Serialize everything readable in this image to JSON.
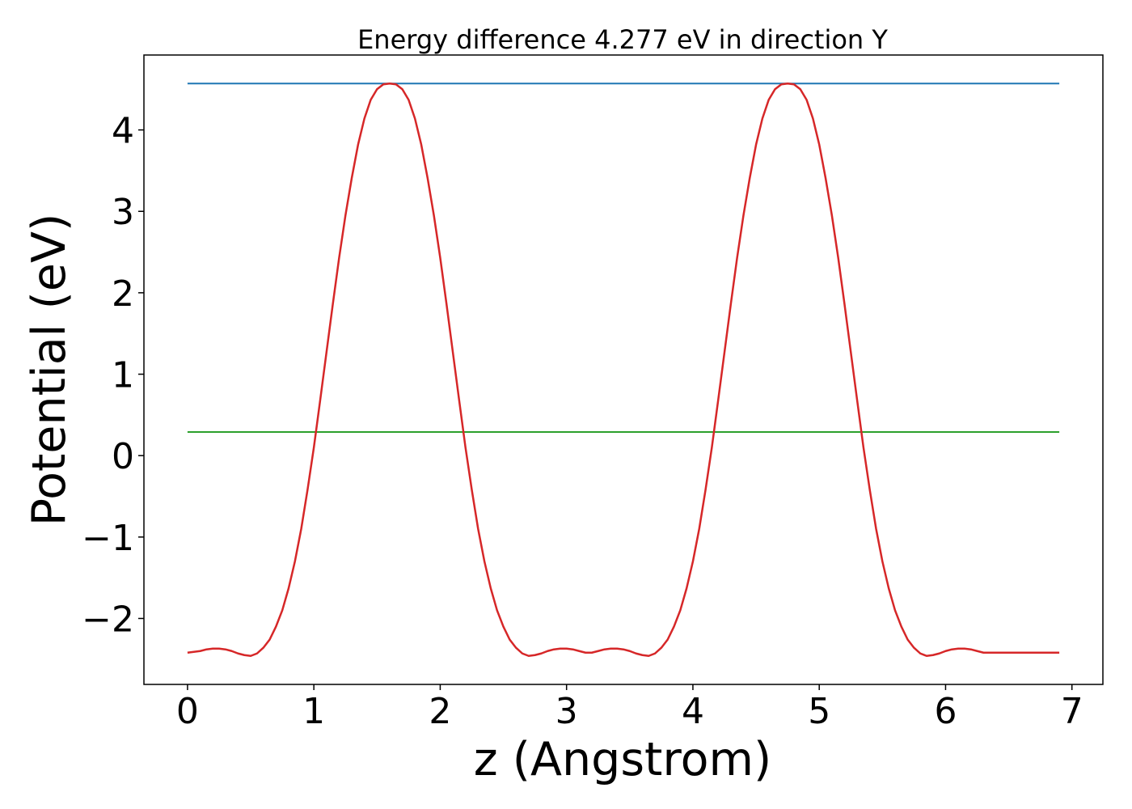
{
  "chart_data": {
    "type": "line",
    "title": "Energy difference 4.277 eV in direction Y",
    "xlabel": "z (Angstrom)",
    "ylabel": "Potential (eV)",
    "xlim": [
      -0.345,
      7.245
    ],
    "ylim": [
      -2.81,
      4.92
    ],
    "xticks": [
      0,
      1,
      2,
      3,
      4,
      5,
      6,
      7
    ],
    "xtick_labels": [
      "0",
      "1",
      "2",
      "3",
      "4",
      "5",
      "6",
      "7"
    ],
    "yticks": [
      -2,
      -1,
      0,
      1,
      2,
      3,
      4
    ],
    "ytick_labels": [
      "−2",
      "−1",
      "0",
      "1",
      "2",
      "3",
      "4"
    ],
    "grid": false,
    "legend": null,
    "series": [
      {
        "color": "#1f77b4",
        "x": [
          0,
          6.9
        ],
        "y": [
          4.57,
          4.57
        ]
      },
      {
        "color": "#2ca02c",
        "x": [
          0,
          6.9
        ],
        "y": [
          0.29,
          0.29
        ]
      },
      {
        "color": "#d62728",
        "x": [
          0.0,
          0.1,
          0.15,
          0.2,
          0.25,
          0.3,
          0.35,
          0.4,
          0.45,
          0.5,
          0.55,
          0.6,
          0.65,
          0.7,
          0.75,
          0.8,
          0.85,
          0.9,
          0.95,
          1.0,
          1.05,
          1.1,
          1.15,
          1.2,
          1.25,
          1.3,
          1.35,
          1.4,
          1.45,
          1.5,
          1.55,
          1.6,
          1.65,
          1.7,
          1.75,
          1.8,
          1.85,
          1.9,
          1.95,
          2.0,
          2.05,
          2.1,
          2.15,
          2.2,
          2.25,
          2.3,
          2.35,
          2.4,
          2.45,
          2.5,
          2.55,
          2.6,
          2.65,
          2.7,
          2.75,
          2.8,
          2.85,
          2.9,
          2.95,
          3.0,
          3.05,
          3.1,
          3.15,
          3.2,
          3.25,
          3.3,
          3.35,
          3.4,
          3.45,
          3.5,
          3.55,
          3.6,
          3.65,
          3.7,
          3.75,
          3.8,
          3.85,
          3.9,
          3.95,
          4.0,
          4.05,
          4.1,
          4.15,
          4.2,
          4.25,
          4.3,
          4.35,
          4.4,
          4.45,
          4.5,
          4.55,
          4.6,
          4.65,
          4.7,
          4.75,
          4.8,
          4.85,
          4.9,
          4.95,
          5.0,
          5.05,
          5.1,
          5.15,
          5.2,
          5.25,
          5.3,
          5.35,
          5.4,
          5.45,
          5.5,
          5.55,
          5.6,
          5.65,
          5.7,
          5.75,
          5.8,
          5.85,
          5.9,
          5.95,
          6.0,
          6.05,
          6.1,
          6.15,
          6.2,
          6.25,
          6.3,
          6.35,
          6.4,
          6.45,
          6.5,
          6.55,
          6.6,
          6.65,
          6.7,
          6.75,
          6.8,
          6.85,
          6.9
        ],
        "y": [
          -2.42,
          -2.4,
          -2.38,
          -2.37,
          -2.37,
          -2.38,
          -2.4,
          -2.43,
          -2.45,
          -2.46,
          -2.43,
          -2.36,
          -2.26,
          -2.1,
          -1.9,
          -1.63,
          -1.3,
          -0.9,
          -0.42,
          0.1,
          0.68,
          1.27,
          1.86,
          2.43,
          2.95,
          3.41,
          3.82,
          4.14,
          4.37,
          4.5,
          4.56,
          4.57,
          4.56,
          4.5,
          4.37,
          4.14,
          3.82,
          3.41,
          2.95,
          2.43,
          1.86,
          1.27,
          0.68,
          0.1,
          -0.42,
          -0.9,
          -1.3,
          -1.63,
          -1.9,
          -2.1,
          -2.26,
          -2.36,
          -2.43,
          -2.46,
          -2.45,
          -2.43,
          -2.4,
          -2.38,
          -2.37,
          -2.37,
          -2.38,
          -2.4,
          -2.42,
          -2.42,
          -2.4,
          -2.38,
          -2.37,
          -2.37,
          -2.38,
          -2.4,
          -2.43,
          -2.45,
          -2.46,
          -2.43,
          -2.36,
          -2.26,
          -2.1,
          -1.9,
          -1.63,
          -1.3,
          -0.9,
          -0.42,
          0.1,
          0.68,
          1.27,
          1.86,
          2.43,
          2.95,
          3.41,
          3.82,
          4.14,
          4.37,
          4.5,
          4.56,
          4.57,
          4.56,
          4.5,
          4.37,
          4.14,
          3.82,
          3.41,
          2.95,
          2.43,
          1.86,
          1.27,
          0.68,
          0.1,
          -0.42,
          -0.9,
          -1.3,
          -1.63,
          -1.9,
          -2.1,
          -2.26,
          -2.36,
          -2.43,
          -2.46,
          -2.45,
          -2.43,
          -2.4,
          -2.38,
          -2.37,
          -2.37,
          -2.38,
          -2.4,
          -2.42,
          -2.42,
          -2.42,
          -2.42,
          -2.42,
          -2.42,
          -2.42,
          -2.42,
          -2.42,
          -2.42,
          -2.42,
          -2.42,
          -2.42
        ]
      }
    ]
  }
}
